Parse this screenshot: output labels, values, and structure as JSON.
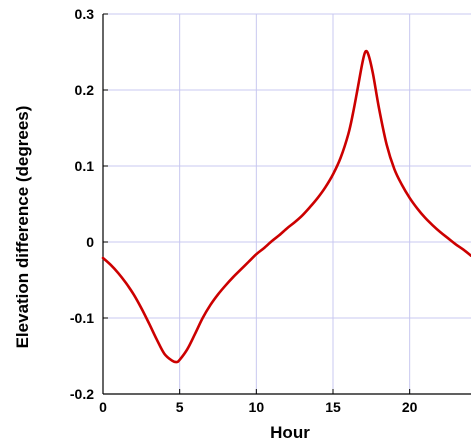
{
  "chart_data": {
    "type": "line",
    "title": "",
    "xlabel": "Hour",
    "ylabel": "Elevation difference (degrees)",
    "xlim": [
      0,
      24
    ],
    "ylim": [
      -0.2,
      0.3
    ],
    "xticks": [
      0,
      5,
      10,
      15,
      20
    ],
    "yticks": [
      -0.2,
      -0.1,
      0,
      0.1,
      0.2,
      0.3
    ],
    "ytick_labels": [
      "-0.2",
      "-0.1",
      "0",
      "0.1",
      "0.2",
      "0.3"
    ],
    "grid": true,
    "legend": "none",
    "colors": {
      "line": "#cc0000",
      "grid": "#c8c8f0",
      "axis": "#000000"
    },
    "series": [
      {
        "x": [
          0,
          0.5,
          1,
          1.5,
          2,
          2.5,
          3,
          3.5,
          4,
          4.5,
          4.8,
          5,
          5.5,
          6,
          6.5,
          7,
          7.5,
          8,
          8.5,
          9,
          9.5,
          10,
          10.5,
          11,
          11.5,
          12,
          12.5,
          13,
          13.5,
          14,
          14.5,
          15,
          15.5,
          16,
          16.3,
          16.6,
          16.9,
          17.1,
          17.3,
          17.6,
          18,
          18.5,
          19,
          19.5,
          20,
          20.5,
          21,
          21.5,
          22,
          22.5,
          23,
          23.5,
          24
        ],
        "y": [
          -0.021,
          -0.03,
          -0.041,
          -0.054,
          -0.069,
          -0.087,
          -0.107,
          -0.128,
          -0.147,
          -0.156,
          -0.158,
          -0.155,
          -0.141,
          -0.121,
          -0.1,
          -0.083,
          -0.069,
          -0.057,
          -0.046,
          -0.036,
          -0.026,
          -0.016,
          -0.008,
          0.001,
          0.009,
          0.018,
          0.026,
          0.035,
          0.046,
          0.058,
          0.072,
          0.089,
          0.111,
          0.142,
          0.169,
          0.201,
          0.234,
          0.25,
          0.247,
          0.222,
          0.176,
          0.128,
          0.096,
          0.075,
          0.058,
          0.044,
          0.032,
          0.022,
          0.013,
          0.005,
          -0.003,
          -0.01,
          -0.018
        ]
      }
    ]
  }
}
